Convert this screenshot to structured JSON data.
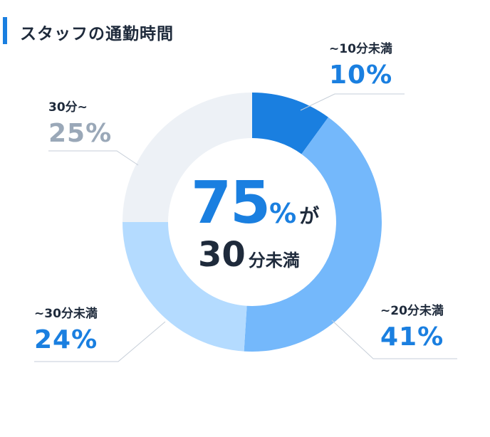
{
  "title": "スタッフの通勤時間",
  "center": {
    "value": "75",
    "pct_sign": "%",
    "particle": "が",
    "threshold_num": "30",
    "threshold_unit": "分未満"
  },
  "labels": {
    "s1_name": "~10分未満",
    "s1_value": "10%",
    "s2_name": "~20分未満",
    "s2_value": "41%",
    "s3_name": "~30分未満",
    "s3_value": "24%",
    "s4_name": "30分~",
    "s4_value": "25%"
  },
  "colors": {
    "accent": "#1a7fe0",
    "slice1": "#1a7fe0",
    "slice2": "#74b8fb",
    "slice3": "#b4dbff",
    "slice4": "#edf1f6",
    "value_muted": "#9aa8b8",
    "leader": "#c6ced8"
  },
  "chart_data": {
    "type": "pie",
    "title": "スタッフの通勤時間",
    "categories": [
      "~10分未満",
      "~20分未満",
      "~30分未満",
      "30分~"
    ],
    "values": [
      10,
      41,
      24,
      25
    ],
    "unit": "%",
    "style": "donut"
  }
}
